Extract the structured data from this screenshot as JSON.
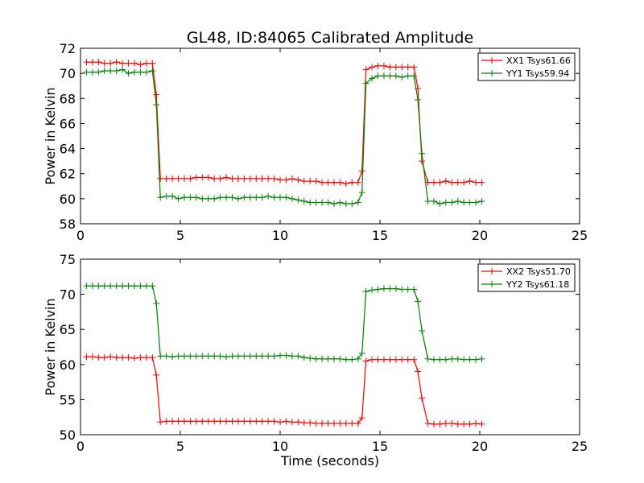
{
  "chart_data": [
    {
      "type": "line",
      "title": "GL48, ID:84065 Calibrated Amplitude",
      "xlabel": "",
      "ylabel": "Power in Kelvin",
      "xlim": [
        0,
        25
      ],
      "ylim": [
        58,
        72
      ],
      "xticks": [
        0,
        5,
        10,
        15,
        20,
        25
      ],
      "yticks": [
        58,
        60,
        62,
        64,
        66,
        68,
        70,
        72
      ],
      "grid": false,
      "legend": "top-right",
      "x": [
        0.3,
        0.6,
        0.9,
        1.2,
        1.5,
        1.8,
        2.1,
        2.4,
        2.7,
        3.0,
        3.3,
        3.6,
        3.8,
        4.0,
        4.3,
        4.6,
        4.9,
        5.2,
        5.5,
        5.8,
        6.1,
        6.4,
        6.7,
        7.0,
        7.3,
        7.6,
        7.9,
        8.2,
        8.5,
        8.8,
        9.1,
        9.4,
        9.7,
        10.0,
        10.3,
        10.6,
        10.9,
        11.2,
        11.5,
        11.8,
        12.1,
        12.4,
        12.7,
        13.0,
        13.3,
        13.6,
        13.9,
        14.1,
        14.3,
        14.6,
        14.9,
        15.2,
        15.5,
        15.8,
        16.1,
        16.4,
        16.7,
        16.9,
        17.1,
        17.4,
        17.7,
        18.0,
        18.3,
        18.6,
        18.9,
        19.2,
        19.5,
        19.8,
        20.1
      ],
      "series": [
        {
          "name": "XX1 Tsys61.66",
          "color": "#ff0000",
          "values": [
            70.9,
            70.9,
            70.9,
            70.8,
            70.8,
            70.9,
            70.8,
            70.8,
            70.8,
            70.7,
            70.8,
            70.8,
            68.3,
            61.6,
            61.6,
            61.6,
            61.6,
            61.6,
            61.6,
            61.7,
            61.7,
            61.7,
            61.6,
            61.6,
            61.7,
            61.6,
            61.6,
            61.6,
            61.6,
            61.6,
            61.6,
            61.6,
            61.6,
            61.5,
            61.5,
            61.6,
            61.5,
            61.4,
            61.4,
            61.4,
            61.3,
            61.3,
            61.3,
            61.3,
            61.2,
            61.3,
            61.3,
            62.2,
            70.3,
            70.5,
            70.6,
            70.6,
            70.5,
            70.5,
            70.5,
            70.5,
            70.5,
            68.8,
            63.0,
            61.3,
            61.3,
            61.3,
            61.4,
            61.3,
            61.3,
            61.3,
            61.4,
            61.3,
            61.3
          ]
        },
        {
          "name": "YY1 Tsys59.94",
          "color": "#008000",
          "values": [
            70.1,
            70.1,
            70.1,
            70.2,
            70.2,
            70.2,
            70.3,
            70.0,
            70.1,
            70.1,
            70.1,
            70.2,
            67.5,
            60.1,
            60.2,
            60.2,
            60.0,
            60.1,
            60.1,
            60.1,
            60.0,
            60.0,
            60.0,
            60.1,
            60.1,
            60.1,
            60.0,
            60.1,
            60.1,
            60.1,
            60.1,
            60.2,
            60.1,
            60.1,
            60.1,
            60.0,
            59.9,
            59.8,
            59.7,
            59.7,
            59.7,
            59.7,
            59.6,
            59.7,
            59.6,
            59.6,
            59.7,
            60.5,
            69.2,
            69.6,
            69.8,
            69.8,
            69.8,
            69.8,
            69.7,
            69.8,
            69.8,
            67.9,
            63.6,
            59.8,
            59.8,
            59.6,
            59.7,
            59.7,
            59.8,
            59.7,
            59.7,
            59.7,
            59.8
          ]
        }
      ]
    },
    {
      "type": "line",
      "title": "",
      "xlabel": "Time (seconds)",
      "ylabel": "Power in Kelvin",
      "xlim": [
        0,
        25
      ],
      "ylim": [
        50,
        75
      ],
      "xticks": [
        0,
        5,
        10,
        15,
        20,
        25
      ],
      "yticks": [
        50,
        55,
        60,
        65,
        70,
        75
      ],
      "grid": false,
      "legend": "top-right",
      "x": [
        0.3,
        0.6,
        0.9,
        1.2,
        1.5,
        1.8,
        2.1,
        2.4,
        2.7,
        3.0,
        3.3,
        3.6,
        3.8,
        4.0,
        4.3,
        4.6,
        4.9,
        5.2,
        5.5,
        5.8,
        6.1,
        6.4,
        6.7,
        7.0,
        7.3,
        7.6,
        7.9,
        8.2,
        8.5,
        8.8,
        9.1,
        9.4,
        9.7,
        10.0,
        10.3,
        10.6,
        10.9,
        11.2,
        11.5,
        11.8,
        12.1,
        12.4,
        12.7,
        13.0,
        13.3,
        13.6,
        13.9,
        14.1,
        14.3,
        14.6,
        14.9,
        15.2,
        15.5,
        15.8,
        16.1,
        16.4,
        16.7,
        16.9,
        17.1,
        17.4,
        17.7,
        18.0,
        18.3,
        18.6,
        18.9,
        19.2,
        19.5,
        19.8,
        20.1
      ],
      "series": [
        {
          "name": "XX2 Tsys51.70",
          "color": "#ff0000",
          "values": [
            61.1,
            61.1,
            61.0,
            61.0,
            61.1,
            61.0,
            61.0,
            61.0,
            60.9,
            61.0,
            61.0,
            61.0,
            58.5,
            51.8,
            51.9,
            51.9,
            51.9,
            51.9,
            51.9,
            51.9,
            51.9,
            51.9,
            51.9,
            51.9,
            51.9,
            51.9,
            51.9,
            51.9,
            51.9,
            51.9,
            51.9,
            51.9,
            51.9,
            51.8,
            51.9,
            51.8,
            51.8,
            51.7,
            51.7,
            51.6,
            51.6,
            51.6,
            51.6,
            51.6,
            51.6,
            51.6,
            51.6,
            52.4,
            60.5,
            60.7,
            60.7,
            60.7,
            60.7,
            60.7,
            60.7,
            60.7,
            60.7,
            59.0,
            55.2,
            51.6,
            51.5,
            51.5,
            51.6,
            51.6,
            51.5,
            51.5,
            51.5,
            51.6,
            51.5
          ]
        },
        {
          "name": "YY2 Tsys61.18",
          "color": "#008000",
          "values": [
            71.2,
            71.2,
            71.2,
            71.2,
            71.2,
            71.2,
            71.2,
            71.2,
            71.2,
            71.2,
            71.2,
            71.2,
            68.7,
            61.2,
            61.2,
            61.1,
            61.2,
            61.2,
            61.2,
            61.2,
            61.2,
            61.2,
            61.2,
            61.2,
            61.1,
            61.2,
            61.2,
            61.2,
            61.2,
            61.2,
            61.2,
            61.2,
            61.2,
            61.3,
            61.3,
            61.2,
            61.2,
            61.0,
            60.9,
            60.8,
            60.8,
            60.8,
            60.8,
            60.8,
            60.7,
            60.7,
            60.8,
            61.6,
            70.4,
            70.6,
            70.7,
            70.8,
            70.8,
            70.8,
            70.7,
            70.7,
            70.7,
            69.0,
            64.8,
            60.8,
            60.7,
            60.7,
            60.7,
            60.8,
            60.8,
            60.7,
            60.7,
            60.7,
            60.8
          ]
        }
      ]
    }
  ]
}
